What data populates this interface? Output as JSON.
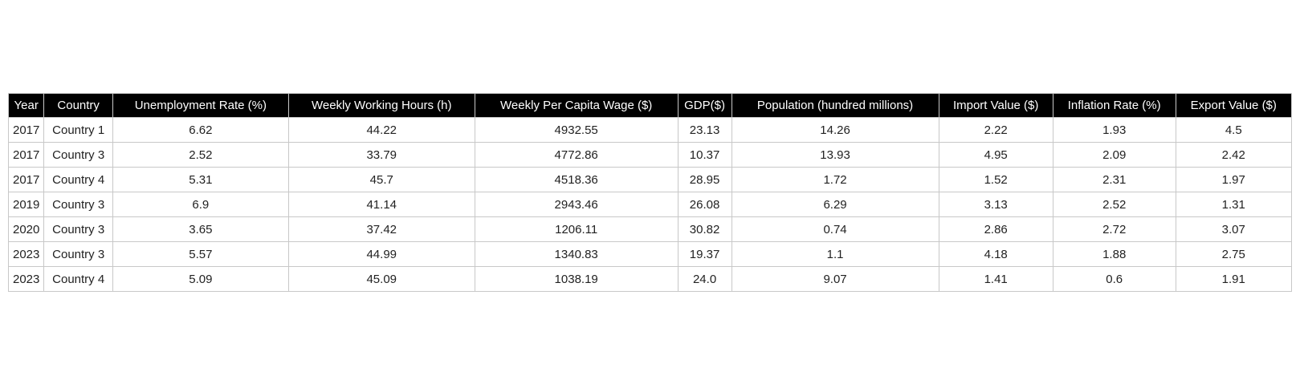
{
  "chart_data": {
    "type": "table",
    "columns": [
      "Year",
      "Country",
      "Unemployment Rate (%)",
      "Weekly Working Hours (h)",
      "Weekly Per Capita Wage ($)",
      "GDP($)",
      "Population (hundred millions)",
      "Import Value ($)",
      "Inflation Rate (%)",
      "Export Value ($)"
    ],
    "rows": [
      [
        "2017",
        "Country 1",
        "6.62",
        "44.22",
        "4932.55",
        "23.13",
        "14.26",
        "2.22",
        "1.93",
        "4.5"
      ],
      [
        "2017",
        "Country 3",
        "2.52",
        "33.79",
        "4772.86",
        "10.37",
        "13.93",
        "4.95",
        "2.09",
        "2.42"
      ],
      [
        "2017",
        "Country 4",
        "5.31",
        "45.7",
        "4518.36",
        "28.95",
        "1.72",
        "1.52",
        "2.31",
        "1.97"
      ],
      [
        "2019",
        "Country 3",
        "6.9",
        "41.14",
        "2943.46",
        "26.08",
        "6.29",
        "3.13",
        "2.52",
        "1.31"
      ],
      [
        "2020",
        "Country 3",
        "3.65",
        "37.42",
        "1206.11",
        "30.82",
        "0.74",
        "2.86",
        "2.72",
        "3.07"
      ],
      [
        "2023",
        "Country 3",
        "5.57",
        "44.99",
        "1340.83",
        "19.37",
        "1.1",
        "4.18",
        "1.88",
        "2.75"
      ],
      [
        "2023",
        "Country 4",
        "5.09",
        "45.09",
        "1038.19",
        "24.0",
        "9.07",
        "1.41",
        "0.6",
        "1.91"
      ]
    ],
    "colors": {
      "header_background": "#000000",
      "header_text": "#ffffff",
      "cell_text": "#222222",
      "grid": "#c8c8c8"
    }
  }
}
